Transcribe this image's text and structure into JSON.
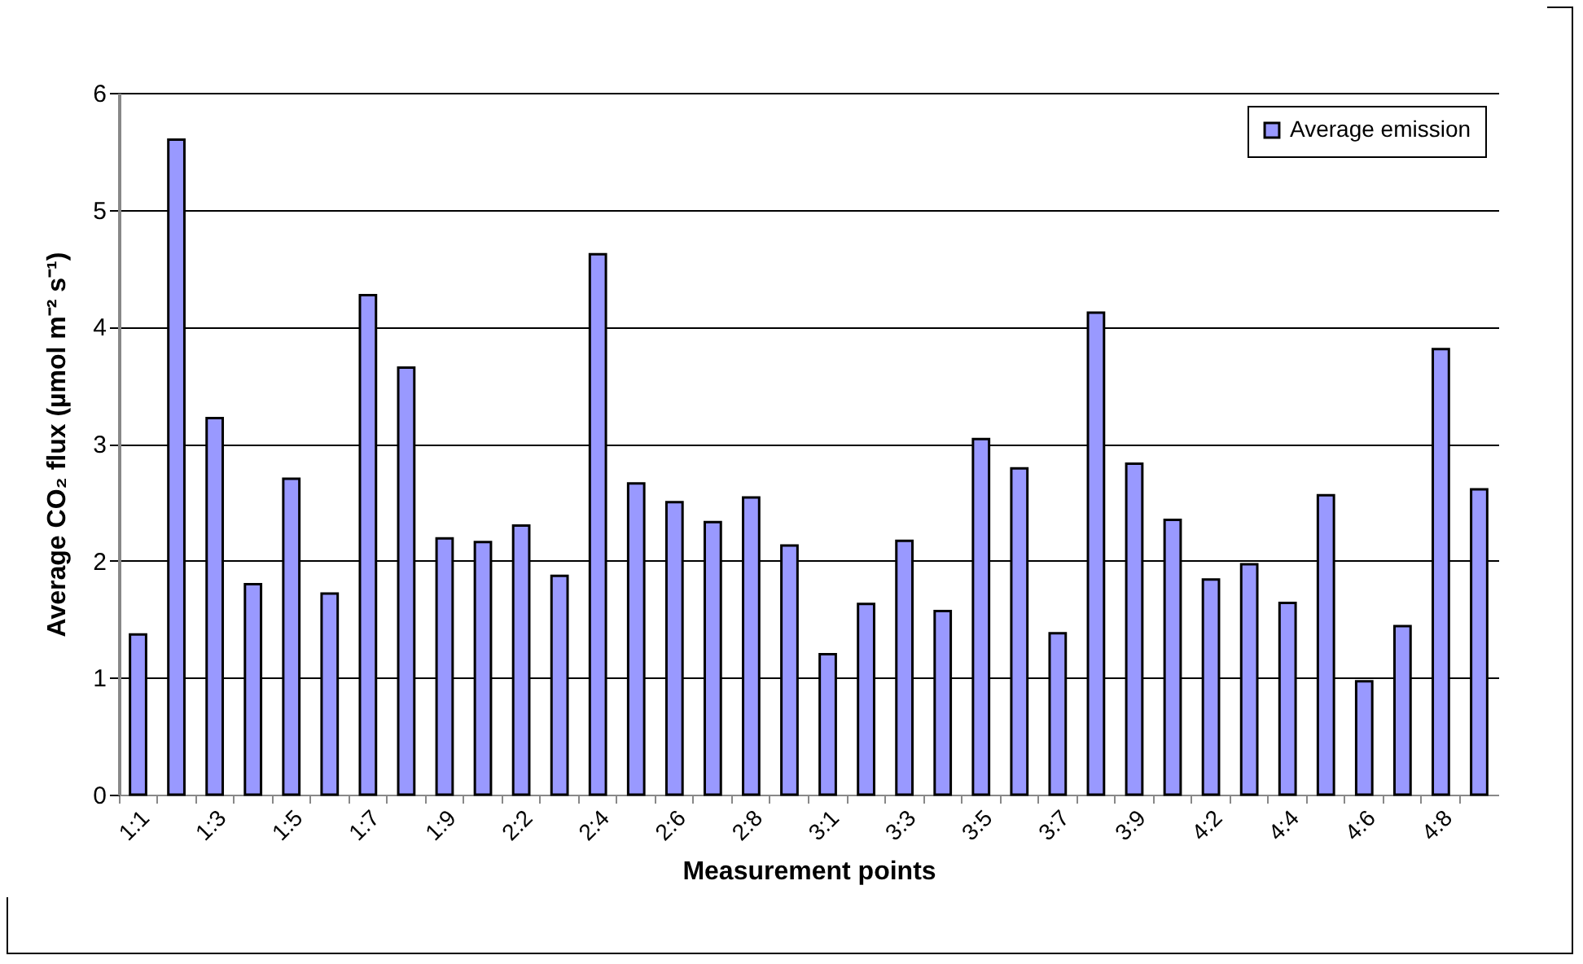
{
  "chart_data": {
    "type": "bar",
    "xlabel": "Measurement points",
    "ylabel": "Average CO₂ flux (µmol m⁻² s⁻¹)",
    "categories": [
      "1:1",
      null,
      "1:3",
      null,
      "1:5",
      null,
      "1:7",
      null,
      "1:9",
      null,
      "2:2",
      null,
      "2:4",
      null,
      "2:6",
      null,
      "2:8",
      null,
      "3:1",
      null,
      "3:3",
      null,
      "3:5",
      null,
      "3:7",
      null,
      "3:9",
      null,
      "4:2",
      null,
      "4:4",
      null,
      "4:6",
      null,
      "4:8",
      null
    ],
    "series": [
      {
        "name": "Average emission",
        "color": "#9999ff",
        "values": [
          1.37,
          5.6,
          3.22,
          1.8,
          2.7,
          1.72,
          4.27,
          3.65,
          2.19,
          2.16,
          2.3,
          1.87,
          4.62,
          2.66,
          2.5,
          2.33,
          2.54,
          2.13,
          1.2,
          1.63,
          2.17,
          1.57,
          3.04,
          2.79,
          1.38,
          4.12,
          2.83,
          2.35,
          1.84,
          1.97,
          1.64,
          2.56,
          0.97,
          1.44,
          3.81,
          2.61
        ]
      }
    ],
    "ylim": [
      0,
      6
    ],
    "yticks": [
      0,
      1,
      2,
      3,
      4,
      5,
      6
    ],
    "grid": "y",
    "legend": "top right"
  }
}
